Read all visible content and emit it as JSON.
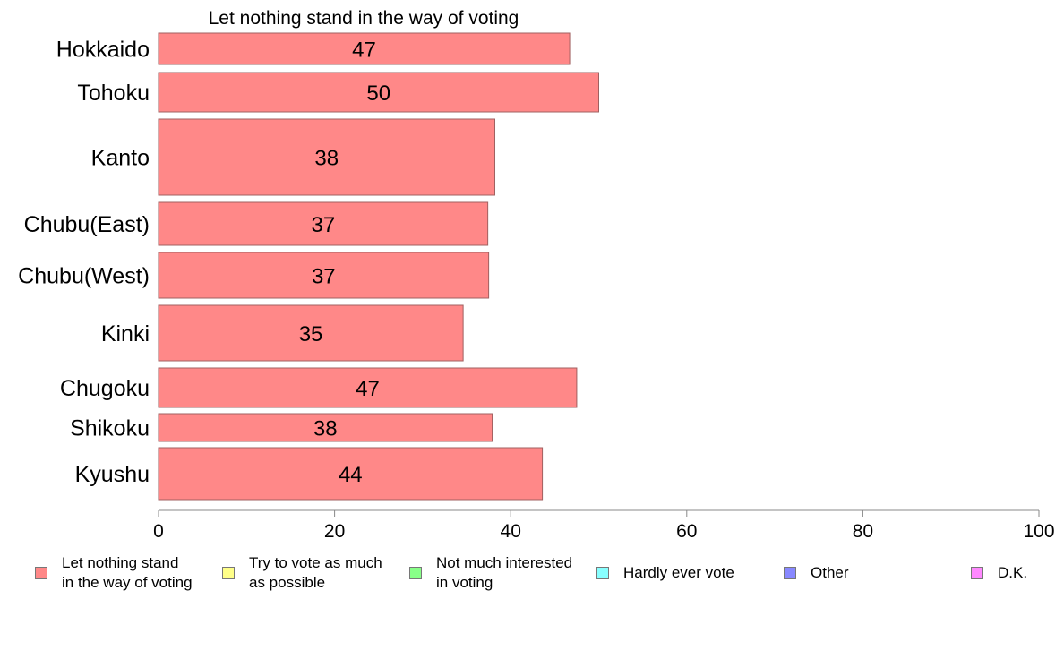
{
  "chart_data": {
    "type": "bar",
    "orientation": "horizontal",
    "title": "Let nothing stand in the way of voting",
    "categories": [
      "Hokkaido",
      "Tohoku",
      "Kanto",
      "Chubu(East)",
      "Chubu(West)",
      "Kinki",
      "Chugoku",
      "Shikoku",
      "Kyushu"
    ],
    "values": [
      46.7,
      50.0,
      38.2,
      37.4,
      37.5,
      34.6,
      47.5,
      37.9,
      43.6
    ],
    "data_labels": [
      "47",
      "50",
      "38",
      "37",
      "37",
      "35",
      "47",
      "38",
      "44"
    ],
    "xlim": [
      0,
      100
    ],
    "xticks": [
      "0",
      "20",
      "40",
      "60",
      "80",
      "100"
    ],
    "bar_color": "#ff8888",
    "bar_edge_color": "#a06060",
    "legend_position": "bottom",
    "legend": [
      {
        "label": "Let nothing stand\nin the way of voting",
        "color": "#ff8888"
      },
      {
        "label": "Try to vote as much\nas possible",
        "color": "#ffff88"
      },
      {
        "label": "Not much interested\nin voting",
        "color": "#88ff88"
      },
      {
        "label": "Hardly ever vote",
        "color": "#88ffff"
      },
      {
        "label": "Other",
        "color": "#8888ff"
      },
      {
        "label": "D.K.",
        "color": "#ff88ff"
      }
    ]
  }
}
